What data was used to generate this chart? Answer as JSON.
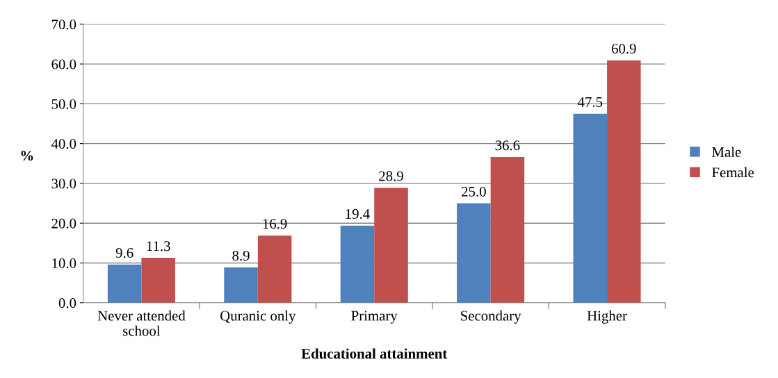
{
  "chart_data": {
    "type": "bar",
    "xlabel": "Educational attainment",
    "ylabel": "%",
    "categories": [
      "Never attended\nschool",
      "Quranic only",
      "Primary",
      "Secondary",
      "Higher"
    ],
    "series": [
      {
        "name": "Male",
        "color": "#4f81bd",
        "values": [
          9.6,
          8.9,
          19.4,
          25.0,
          47.5
        ],
        "value_labels": [
          "9.6",
          "8.9",
          "19.4",
          "25.0",
          "47.5"
        ]
      },
      {
        "name": "Female",
        "color": "#c0504d",
        "values": [
          11.3,
          16.9,
          28.9,
          36.6,
          60.9
        ],
        "value_labels": [
          "11.3",
          "16.9",
          "28.9",
          "36.6",
          "60.9"
        ]
      }
    ],
    "ylim": [
      0,
      70
    ],
    "yticks": [
      {
        "value": 0,
        "label": "0.0"
      },
      {
        "value": 10,
        "label": "10.0"
      },
      {
        "value": 20,
        "label": "20.0"
      },
      {
        "value": 30,
        "label": "30.0"
      },
      {
        "value": 40,
        "label": "40.0"
      },
      {
        "value": 50,
        "label": "50.0"
      },
      {
        "value": 60,
        "label": "60.0"
      },
      {
        "value": 70,
        "label": "70.0"
      }
    ],
    "grid": "y",
    "legend": "right"
  }
}
